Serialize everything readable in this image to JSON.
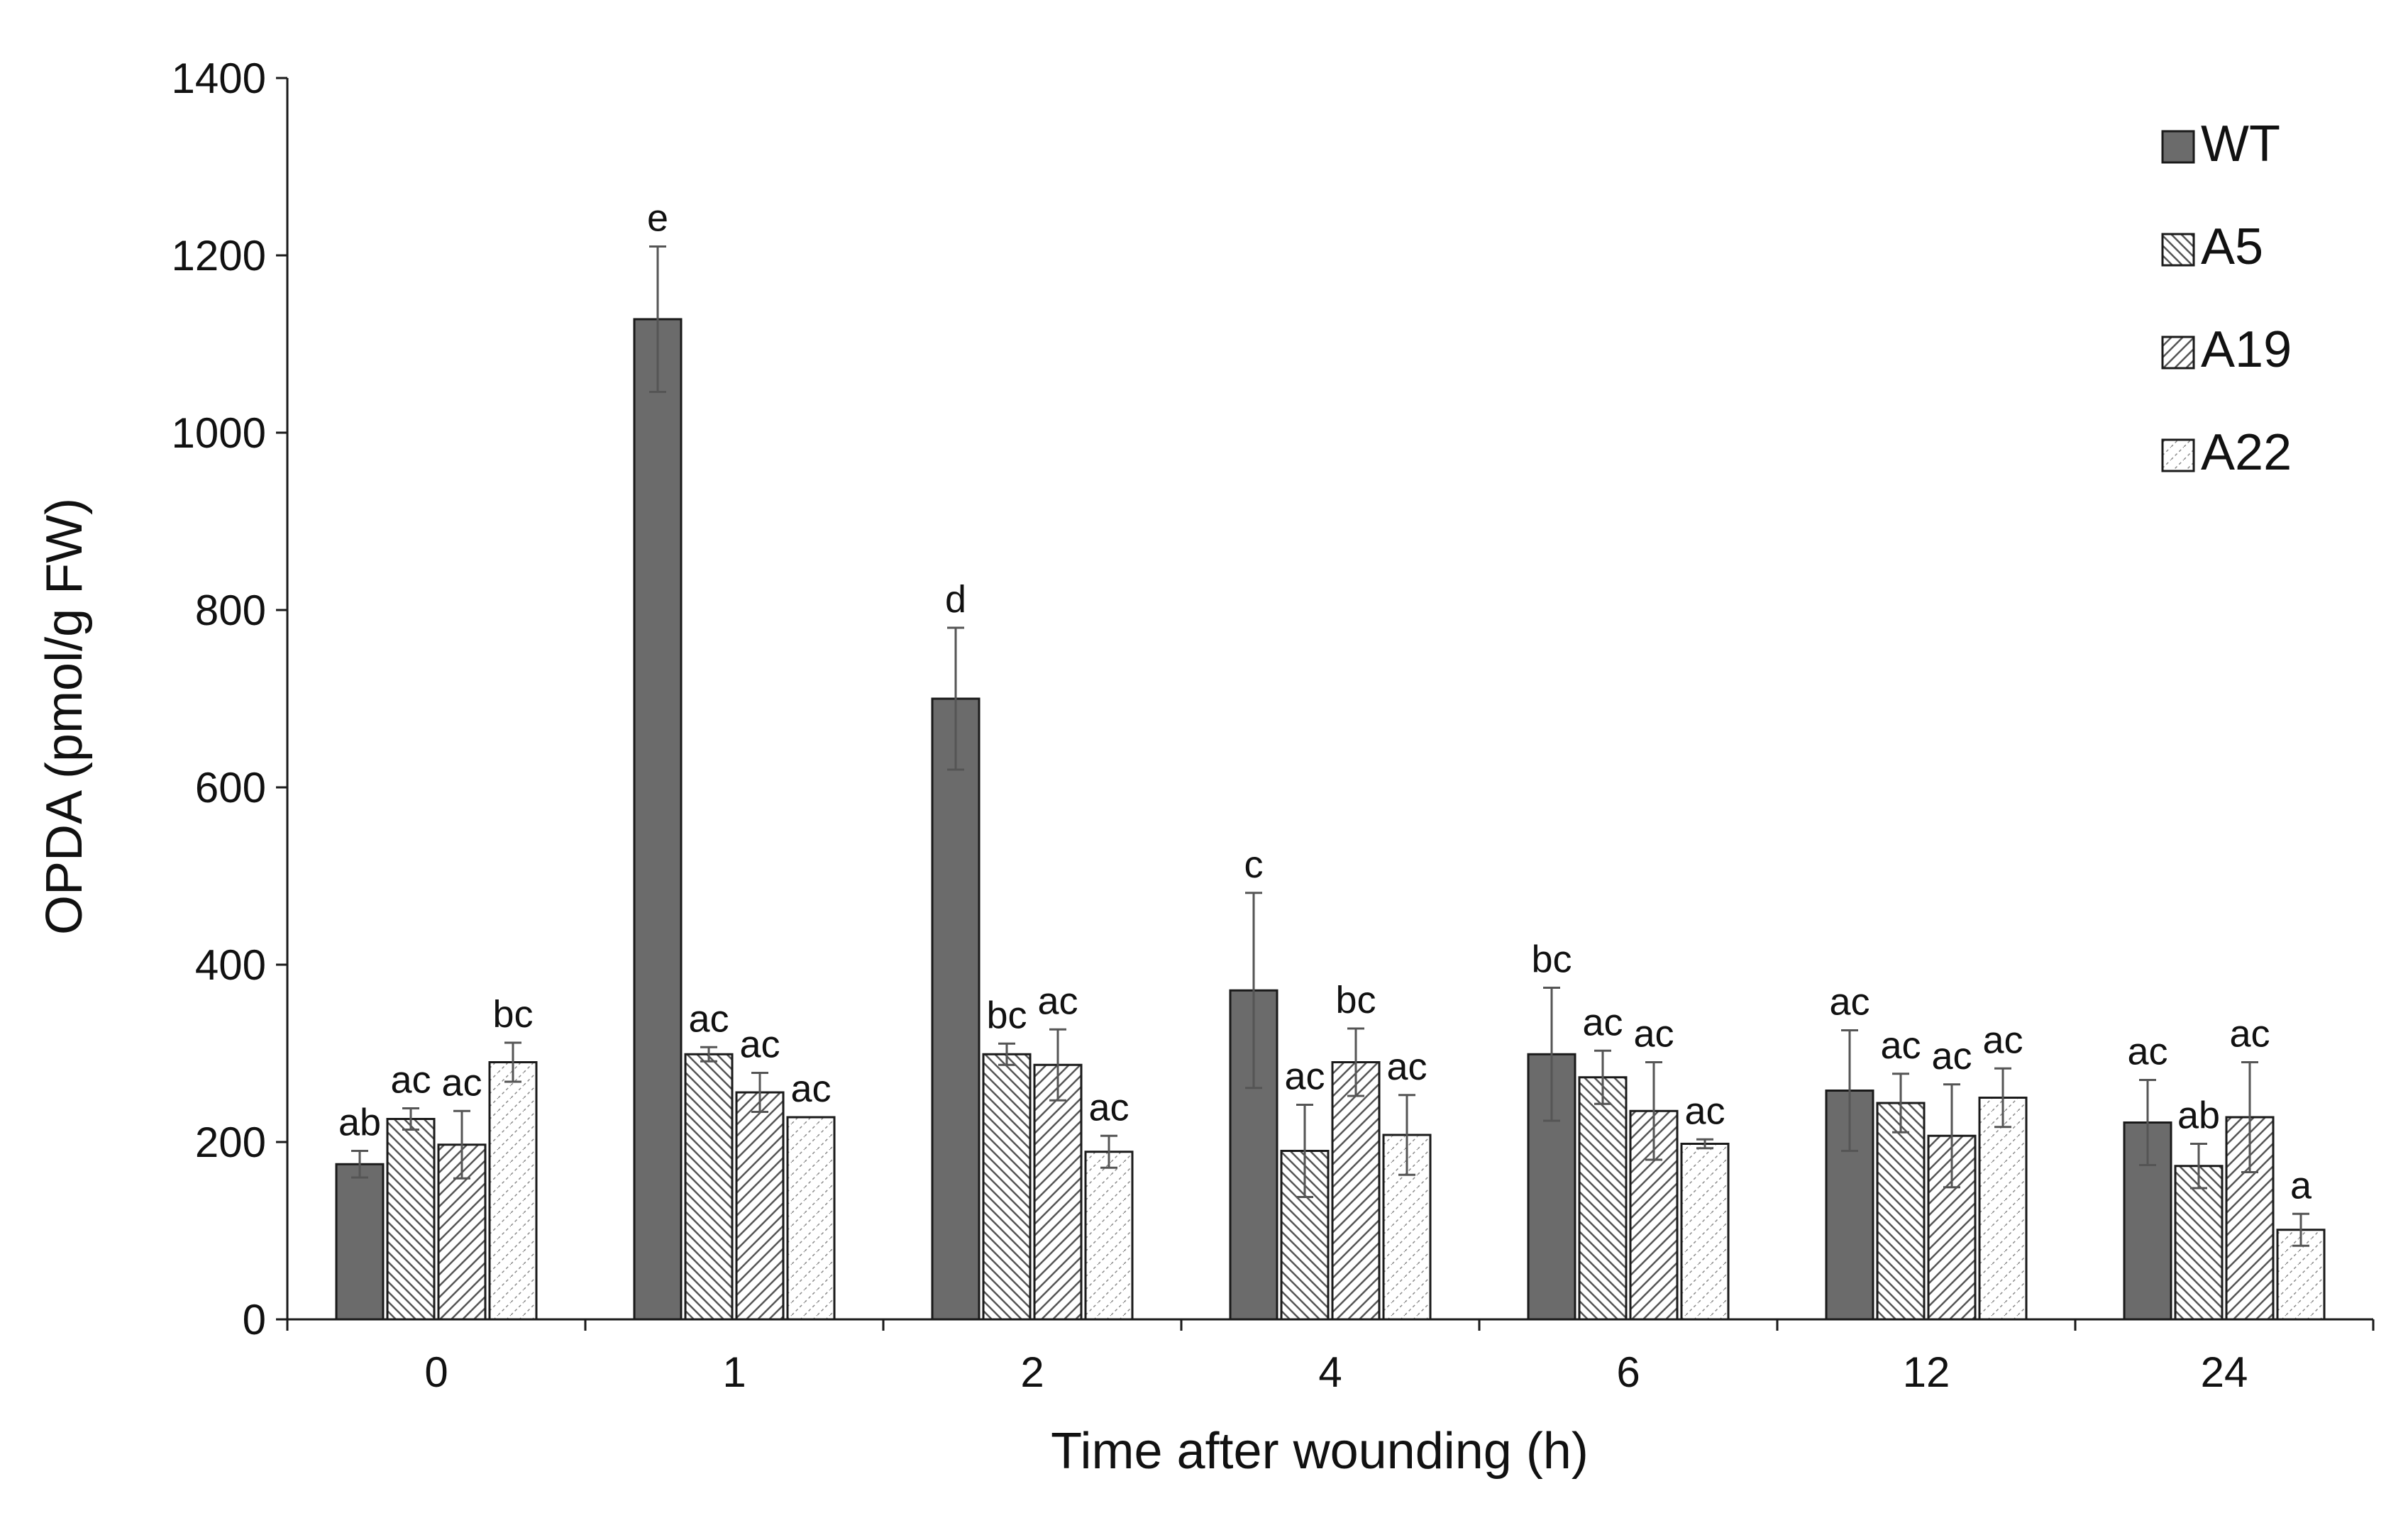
{
  "chart_data": {
    "type": "bar",
    "title": "",
    "xlabel": "Time after wounding (h)",
    "ylabel": "OPDA (pmol/g FW)",
    "ylim": [
      0,
      1400
    ],
    "yticks": [
      "0",
      "200",
      "400",
      "600",
      "800",
      "1000",
      "1200",
      "1400"
    ],
    "categories": [
      "0",
      "1",
      "2",
      "4",
      "6",
      "12",
      "24"
    ],
    "legend_position": "top-right",
    "grid": false,
    "series": [
      {
        "name": "WT",
        "fill": "solid",
        "color": "#6b6b6b",
        "values": [
          175,
          1128,
          700,
          371,
          299,
          258,
          222
        ],
        "errors": [
          15,
          82,
          80,
          110,
          75,
          68,
          48
        ],
        "labels": [
          "ab",
          "e",
          "d",
          "c",
          "bc",
          "ac",
          "ac"
        ]
      },
      {
        "name": "A5",
        "fill": "hatch-back",
        "color": "#ffffff",
        "values": [
          226,
          299,
          299,
          190,
          273,
          244,
          173
        ],
        "errors": [
          12,
          8,
          12,
          52,
          30,
          33,
          25
        ],
        "labels": [
          "ac",
          "ac",
          "bc",
          "ac",
          "ac",
          "ac",
          "ab"
        ]
      },
      {
        "name": "A19",
        "fill": "hatch-forward",
        "color": "#ffffff",
        "values": [
          197,
          256,
          287,
          290,
          235,
          207,
          228
        ],
        "errors": [
          38,
          22,
          40,
          38,
          55,
          58,
          62
        ],
        "labels": [
          "ac",
          "ac",
          "ac",
          "bc",
          "ac",
          "ac",
          "ac"
        ]
      },
      {
        "name": "A22",
        "fill": "dots",
        "color": "#ffffff",
        "values": [
          290,
          228,
          189,
          208,
          198,
          250,
          101
        ],
        "errors": [
          22,
          0,
          18,
          45,
          5,
          33,
          18
        ],
        "labels": [
          "bc",
          "ac",
          "ac",
          "ac",
          "ac",
          "ac",
          "a"
        ]
      }
    ]
  }
}
